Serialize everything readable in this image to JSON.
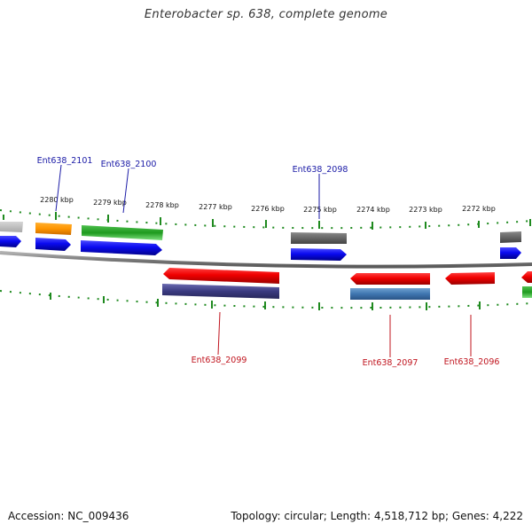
{
  "title": "Enterobacter sp. 638, complete genome",
  "footer": {
    "accession": "Accession: NC_009436",
    "stats": "Topology: circular; Length: 4,518,712 bp; Genes: 4,222"
  },
  "scale_labels": [
    "2280 kbp",
    "2279 kbp",
    "2278 kbp",
    "2277 kbp",
    "2276 kbp",
    "2275 kbp",
    "2274 kbp",
    "2273 kbp",
    "2272 kbp"
  ],
  "gene_labels": [
    {
      "name": "Ent638_2101",
      "strand": "forward"
    },
    {
      "name": "Ent638_2100",
      "strand": "forward"
    },
    {
      "name": "Ent638_2098",
      "strand": "forward"
    },
    {
      "name": "Ent638_2099",
      "strand": "reverse"
    },
    {
      "name": "Ent638_2097",
      "strand": "reverse"
    },
    {
      "name": "Ent638_2096",
      "strand": "reverse"
    }
  ],
  "colors": {
    "forward_label": "#1a1aa6",
    "reverse_label": "#c0141e",
    "ticks": "#1f8a1f",
    "backbone": "#8a8a8a"
  }
}
